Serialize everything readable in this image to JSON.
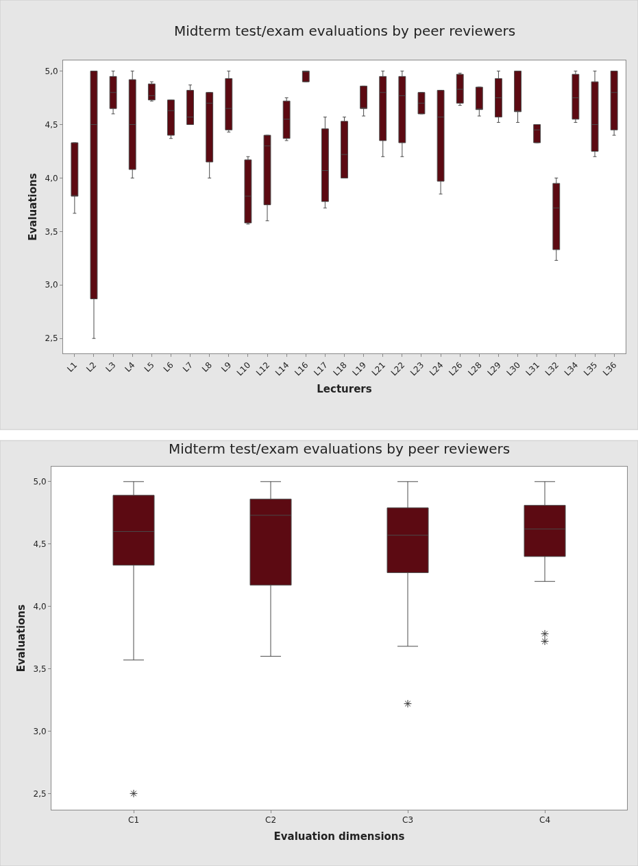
{
  "chart_data": [
    {
      "type": "box",
      "title": "Midterm test/exam evaluations by peer reviewers",
      "xlabel": "Lecturers",
      "ylabel": "Evaluations",
      "categories": [
        "L1",
        "L2",
        "L3",
        "L4",
        "L5",
        "L6",
        "L7",
        "L8",
        "L9",
        "L10",
        "L12",
        "L14",
        "L16",
        "L17",
        "L18",
        "L19",
        "L21",
        "L22",
        "L23",
        "L24",
        "L26",
        "L28",
        "L29",
        "L30",
        "L31",
        "L32",
        "L34",
        "L35",
        "L36"
      ],
      "series": [
        {
          "color": "#5c0a12",
          "boxes": [
            {
              "low": 3.67,
              "q1": 3.83,
              "median": 3.83,
              "q3": 4.33,
              "high": 4.33
            },
            {
              "low": 2.5,
              "q1": 2.87,
              "median": 4.5,
              "q3": 5.0,
              "high": 5.0
            },
            {
              "low": 4.6,
              "q1": 4.65,
              "median": 4.8,
              "q3": 4.95,
              "high": 5.0
            },
            {
              "low": 4.0,
              "q1": 4.08,
              "median": 4.5,
              "q3": 4.92,
              "high": 5.0
            },
            {
              "low": 4.72,
              "q1": 4.73,
              "median": 4.77,
              "q3": 4.88,
              "high": 4.9
            },
            {
              "low": 4.37,
              "q1": 4.4,
              "median": 4.63,
              "q3": 4.73,
              "high": 4.73
            },
            {
              "low": 4.5,
              "q1": 4.5,
              "median": 4.57,
              "q3": 4.82,
              "high": 4.87
            },
            {
              "low": 4.0,
              "q1": 4.15,
              "median": 4.7,
              "q3": 4.8,
              "high": 4.8
            },
            {
              "low": 4.43,
              "q1": 4.45,
              "median": 4.65,
              "q3": 4.93,
              "high": 5.0
            },
            {
              "low": 3.57,
              "q1": 3.58,
              "median": 3.83,
              "q3": 4.17,
              "high": 4.2
            },
            {
              "low": 3.6,
              "q1": 3.75,
              "median": 4.3,
              "q3": 4.4,
              "high": 4.4
            },
            {
              "low": 4.35,
              "q1": 4.37,
              "median": 4.55,
              "q3": 4.72,
              "high": 4.75
            },
            {
              "low": 4.9,
              "q1": 4.9,
              "median": 5.0,
              "q3": 5.0,
              "high": 5.0
            },
            {
              "low": 3.72,
              "q1": 3.78,
              "median": 4.07,
              "q3": 4.46,
              "high": 4.57
            },
            {
              "low": 4.0,
              "q1": 4.0,
              "median": 4.22,
              "q3": 4.53,
              "high": 4.57
            },
            {
              "low": 4.58,
              "q1": 4.65,
              "median": 4.65,
              "q3": 4.86,
              "high": 4.86
            },
            {
              "low": 4.2,
              "q1": 4.35,
              "median": 4.8,
              "q3": 4.95,
              "high": 5.0
            },
            {
              "low": 4.2,
              "q1": 4.33,
              "median": 4.77,
              "q3": 4.95,
              "high": 5.0
            },
            {
              "low": 4.6,
              "q1": 4.6,
              "median": 4.7,
              "q3": 4.8,
              "high": 4.8
            },
            {
              "low": 3.85,
              "q1": 3.97,
              "median": 4.57,
              "q3": 4.82,
              "high": 4.82
            },
            {
              "low": 4.68,
              "q1": 4.7,
              "median": 4.83,
              "q3": 4.97,
              "high": 4.98
            },
            {
              "low": 4.58,
              "q1": 4.64,
              "median": 4.64,
              "q3": 4.85,
              "high": 4.85
            },
            {
              "low": 4.52,
              "q1": 4.57,
              "median": 4.75,
              "q3": 4.93,
              "high": 5.0
            },
            {
              "low": 4.52,
              "q1": 4.62,
              "median": 4.62,
              "q3": 5.0,
              "high": 5.0
            },
            {
              "low": 4.33,
              "q1": 4.33,
              "median": 4.45,
              "q3": 4.5,
              "high": 4.5
            },
            {
              "low": 3.23,
              "q1": 3.33,
              "median": 3.72,
              "q3": 3.95,
              "high": 4.0
            },
            {
              "low": 4.52,
              "q1": 4.55,
              "median": 4.75,
              "q3": 4.97,
              "high": 5.0
            },
            {
              "low": 4.2,
              "q1": 4.25,
              "median": 4.5,
              "q3": 4.9,
              "high": 5.0
            },
            {
              "low": 4.4,
              "q1": 4.45,
              "median": 4.8,
              "q3": 5.0,
              "high": 5.0
            }
          ]
        }
      ],
      "ylim": [
        2.36,
        5.1
      ],
      "yticks": [
        {
          "value": 2.5,
          "label": "2,5"
        },
        {
          "value": 3.0,
          "label": "3,0"
        },
        {
          "value": 3.5,
          "label": "3,5"
        },
        {
          "value": 4.0,
          "label": "4,0"
        },
        {
          "value": 4.5,
          "label": "4,5"
        },
        {
          "value": 5.0,
          "label": "5,0"
        }
      ],
      "grid": false
    },
    {
      "type": "box",
      "title": "Midterm test/exam evaluations by peer reviewers",
      "xlabel": "Evaluation dimensions",
      "ylabel": "Evaluations",
      "categories": [
        "C1",
        "C2",
        "C3",
        "C4"
      ],
      "series": [
        {
          "color": "#5c0a12",
          "boxes": [
            {
              "low": 3.57,
              "q1": 4.33,
              "median": 4.6,
              "q3": 4.89,
              "high": 5.0,
              "outliers": [
                2.5
              ]
            },
            {
              "low": 3.6,
              "q1": 4.17,
              "median": 4.73,
              "q3": 4.86,
              "high": 5.0
            },
            {
              "low": 3.68,
              "q1": 4.27,
              "median": 4.57,
              "q3": 4.79,
              "high": 5.0,
              "outliers": [
                3.22
              ]
            },
            {
              "low": 4.2,
              "q1": 4.4,
              "median": 4.62,
              "q3": 4.81,
              "high": 5.0,
              "outliers": [
                3.78,
                3.72
              ]
            }
          ]
        }
      ],
      "ylim": [
        2.37,
        5.12
      ],
      "yticks": [
        {
          "value": 2.5,
          "label": "2,5"
        },
        {
          "value": 3.0,
          "label": "3,0"
        },
        {
          "value": 3.5,
          "label": "3,5"
        },
        {
          "value": 4.0,
          "label": "4,0"
        },
        {
          "value": 4.5,
          "label": "4,5"
        },
        {
          "value": 5.0,
          "label": "5,0"
        }
      ],
      "grid": false
    }
  ]
}
